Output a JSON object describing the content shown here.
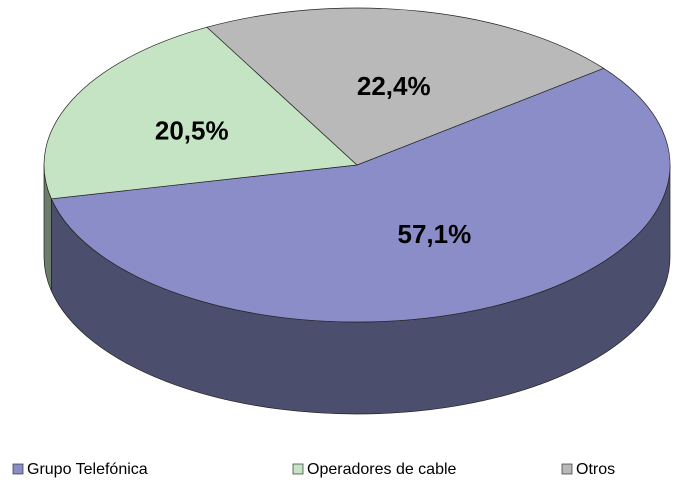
{
  "chart_data": {
    "type": "pie",
    "categories": [
      "Grupo Telefónica",
      "Operadores de cable",
      "Otros"
    ],
    "values": [
      57.1,
      20.5,
      22.4
    ],
    "value_labels": [
      "57,1%",
      "20,5%",
      "22,4%"
    ],
    "colors": [
      "#8b8dc8",
      "#c4e4c4",
      "#b9b9b9"
    ],
    "legend": "bottom"
  }
}
